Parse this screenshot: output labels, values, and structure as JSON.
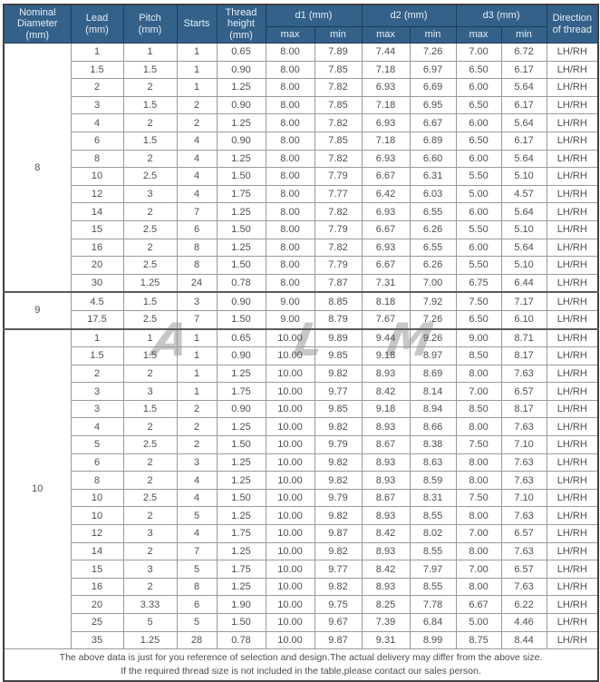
{
  "colors": {
    "header_bg": "#33618a",
    "header_text": "#e9eff5",
    "grid_line": "#9a9a9a",
    "group_divider": "#5a5a5a",
    "outer_border": "#3f3f3f",
    "body_text": "#4f4f4f",
    "watermark": "#c7c7c7"
  },
  "watermark": {
    "letters": [
      "A",
      "L",
      "M"
    ]
  },
  "table": {
    "header": {
      "nominal_diameter": "Nominal\nDiameter\n(mm)",
      "lead": "Lead\n(mm)",
      "pitch": "Pitch\n(mm)",
      "starts": "Starts",
      "thread_height": "Thread\nheight\n(mm)",
      "d1": "d1 (mm)",
      "d2": "d2 (mm)",
      "d3": "d3 (mm)",
      "max": "max",
      "min": "min",
      "direction": "Direction\nof thread"
    },
    "groups": [
      {
        "nominal_diameter": "8",
        "rows": [
          [
            "1",
            "1",
            "1",
            "0.65",
            "8.00",
            "7.89",
            "7.44",
            "7.26",
            "7.00",
            "6.72",
            "LH/RH"
          ],
          [
            "1.5",
            "1.5",
            "1",
            "0.90",
            "8.00",
            "7.85",
            "7.18",
            "6.97",
            "6.50",
            "6.17",
            "LH/RH"
          ],
          [
            "2",
            "2",
            "1",
            "1.25",
            "8.00",
            "7.82",
            "6.93",
            "6.69",
            "6.00",
            "5.64",
            "LH/RH"
          ],
          [
            "3",
            "1.5",
            "2",
            "0.90",
            "8.00",
            "7.85",
            "7.18",
            "6.95",
            "6.50",
            "6.17",
            "LH/RH"
          ],
          [
            "4",
            "2",
            "2",
            "1.25",
            "8.00",
            "7.82",
            "6.93",
            "6.67",
            "6.00",
            "5.64",
            "LH/RH"
          ],
          [
            "6",
            "1.5",
            "4",
            "0.90",
            "8.00",
            "7.85",
            "7.18",
            "6.89",
            "6.50",
            "6.17",
            "LH/RH"
          ],
          [
            "8",
            "2",
            "4",
            "1.25",
            "8.00",
            "7.82",
            "6.93",
            "6.60",
            "6.00",
            "5.64",
            "LH/RH"
          ],
          [
            "10",
            "2.5",
            "4",
            "1.50",
            "8.00",
            "7.79",
            "6.67",
            "6.31",
            "5.50",
            "5.10",
            "LH/RH"
          ],
          [
            "12",
            "3",
            "4",
            "1.75",
            "8.00",
            "7.77",
            "6.42",
            "6.03",
            "5.00",
            "4.57",
            "LH/RH"
          ],
          [
            "14",
            "2",
            "7",
            "1.25",
            "8.00",
            "7.82",
            "6.93",
            "6.55",
            "6.00",
            "5.64",
            "LH/RH"
          ],
          [
            "15",
            "2.5",
            "6",
            "1.50",
            "8.00",
            "7.79",
            "6.67",
            "6.26",
            "5.50",
            "5.10",
            "LH/RH"
          ],
          [
            "16",
            "2",
            "8",
            "1.25",
            "8.00",
            "7.82",
            "6.93",
            "6.55",
            "6.00",
            "5.64",
            "LH/RH"
          ],
          [
            "20",
            "2.5",
            "8",
            "1.50",
            "8.00",
            "7.79",
            "6.67",
            "6.26",
            "5.50",
            "5.10",
            "LH/RH"
          ],
          [
            "30",
            "1.25",
            "24",
            "0.78",
            "8.00",
            "7.87",
            "7.31",
            "7.00",
            "6.75",
            "6.44",
            "LH/RH"
          ]
        ]
      },
      {
        "nominal_diameter": "9",
        "rows": [
          [
            "4.5",
            "1.5",
            "3",
            "0.90",
            "9.00",
            "8.85",
            "8.18",
            "7.92",
            "7.50",
            "7.17",
            "LH/RH"
          ],
          [
            "17.5",
            "2.5",
            "7",
            "1.50",
            "9.00",
            "8.79",
            "7.67",
            "7.26",
            "6.50",
            "6.10",
            "LH/RH"
          ]
        ]
      },
      {
        "nominal_diameter": "10",
        "rows": [
          [
            "1",
            "1",
            "1",
            "0.65",
            "10.00",
            "9.89",
            "9.44",
            "9.26",
            "9.00",
            "8.71",
            "LH/RH"
          ],
          [
            "1.5",
            "1.5",
            "1",
            "0.90",
            "10.00",
            "9.85",
            "9.18",
            "8.97",
            "8.50",
            "8.17",
            "LH/RH"
          ],
          [
            "2",
            "2",
            "1",
            "1.25",
            "10.00",
            "9.82",
            "8.93",
            "8.69",
            "8.00",
            "7.63",
            "LH/RH"
          ],
          [
            "3",
            "3",
            "1",
            "1.75",
            "10.00",
            "9.77",
            "8.42",
            "8.14",
            "7.00",
            "6.57",
            "LH/RH"
          ],
          [
            "3",
            "1.5",
            "2",
            "0.90",
            "10.00",
            "9.85",
            "9.18",
            "8.94",
            "8.50",
            "8.17",
            "LH/RH"
          ],
          [
            "4",
            "2",
            "2",
            "1.25",
            "10.00",
            "9.82",
            "8.93",
            "8.66",
            "8.00",
            "7.63",
            "LH/RH"
          ],
          [
            "5",
            "2.5",
            "2",
            "1.50",
            "10.00",
            "9.79",
            "8.67",
            "8.38",
            "7.50",
            "7.10",
            "LH/RH"
          ],
          [
            "6",
            "2",
            "3",
            "1.25",
            "10.00",
            "9.82",
            "8.93",
            "8.63",
            "8.00",
            "7.63",
            "LH/RH"
          ],
          [
            "8",
            "2",
            "4",
            "1.25",
            "10.00",
            "9.82",
            "8.93",
            "8.59",
            "8.00",
            "7.63",
            "LH/RH"
          ],
          [
            "10",
            "2.5",
            "4",
            "1.50",
            "10.00",
            "9.79",
            "8.67",
            "8.31",
            "7.50",
            "7.10",
            "LH/RH"
          ],
          [
            "10",
            "2",
            "5",
            "1.25",
            "10.00",
            "9.82",
            "8.93",
            "8.55",
            "8.00",
            "7.63",
            "LH/RH"
          ],
          [
            "12",
            "3",
            "4",
            "1.75",
            "10.00",
            "9.87",
            "8.42",
            "8.02",
            "7.00",
            "6.57",
            "LH/RH"
          ],
          [
            "14",
            "2",
            "7",
            "1.25",
            "10.00",
            "9.82",
            "8.93",
            "8.55",
            "8.00",
            "7.63",
            "LH/RH"
          ],
          [
            "15",
            "3",
            "5",
            "1.75",
            "10.00",
            "9.77",
            "8.42",
            "7.97",
            "7.00",
            "6.57",
            "LH/RH"
          ],
          [
            "16",
            "2",
            "8",
            "1.25",
            "10.00",
            "9.82",
            "8.93",
            "8.55",
            "8.00",
            "7.63",
            "LH/RH"
          ],
          [
            "20",
            "3.33",
            "6",
            "1.90",
            "10.00",
            "9.75",
            "8.25",
            "7.78",
            "6.67",
            "6.22",
            "LH/RH"
          ],
          [
            "25",
            "5",
            "5",
            "1.50",
            "10.00",
            "9.67",
            "7.39",
            "6.84",
            "5.00",
            "4.46",
            "LH/RH"
          ],
          [
            "35",
            "1.25",
            "28",
            "0.78",
            "10.00",
            "9.87",
            "9.31",
            "8.99",
            "8.75",
            "8.44",
            "LH/RH"
          ]
        ]
      }
    ],
    "footer_lines": [
      "The above data is just for you reference of selection and design.The actual delivery may differ from the above size.",
      "If the required thread size is not included in the table,please contact our sales person."
    ]
  }
}
